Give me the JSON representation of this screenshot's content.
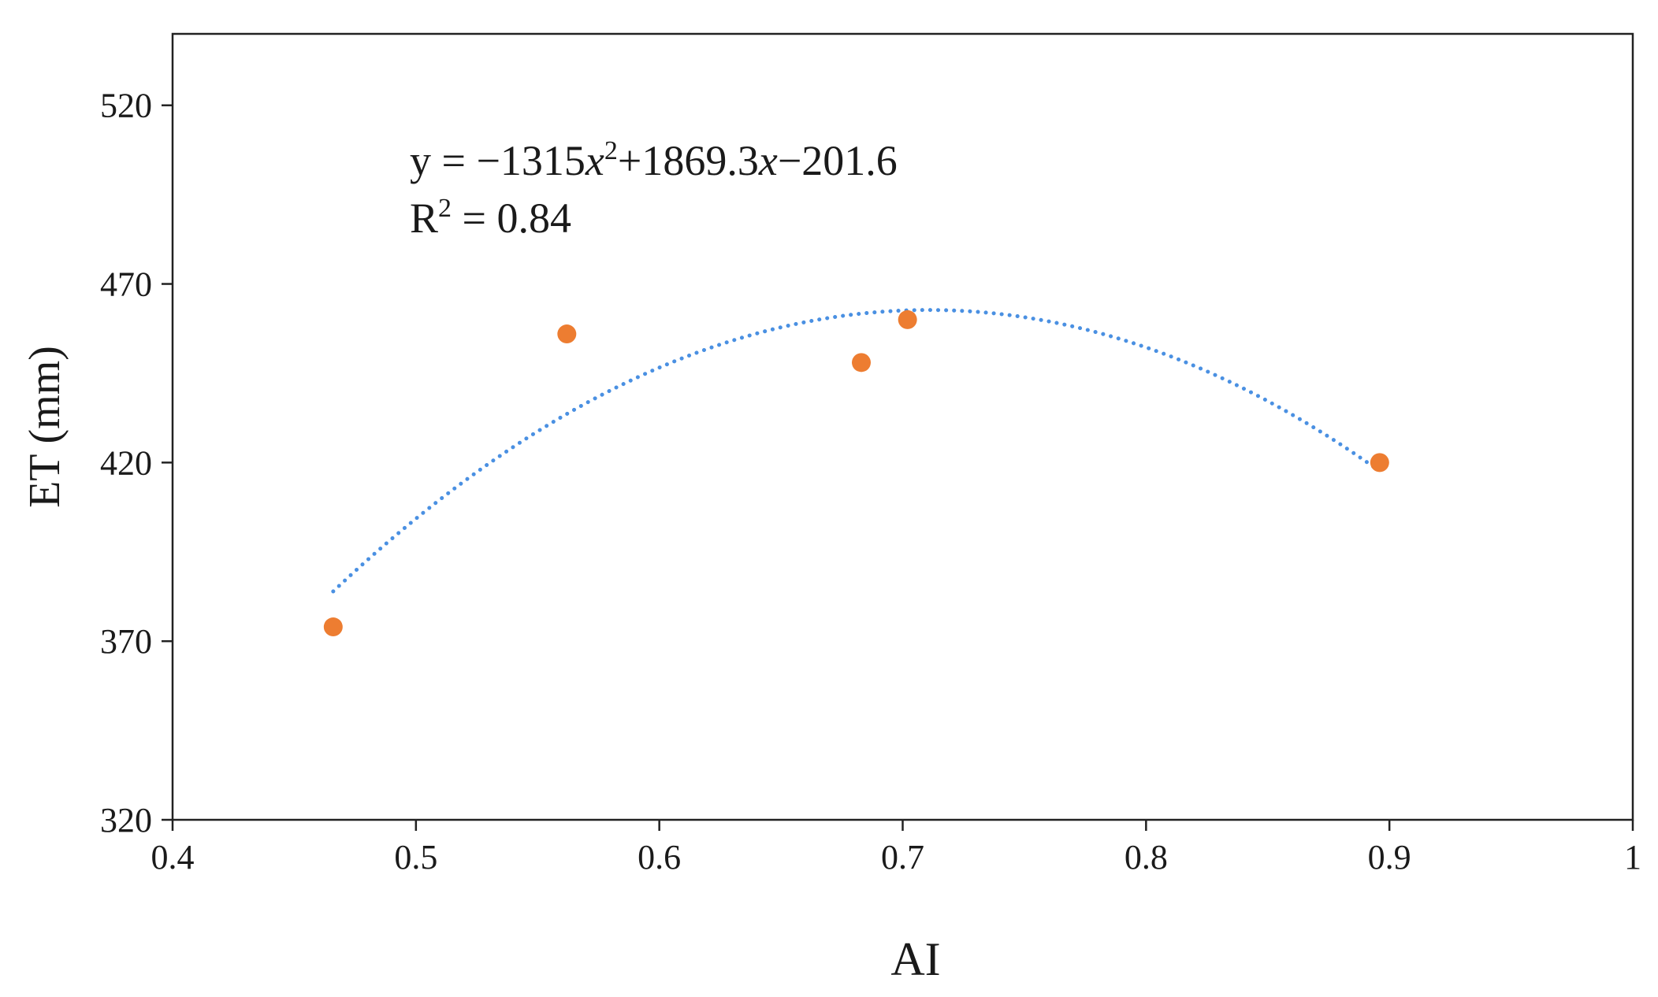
{
  "chart_data": {
    "type": "scatter",
    "xlabel": "AI",
    "ylabel": "ET (mm)",
    "xlim": [
      0.4,
      1.0
    ],
    "ylim": [
      320,
      540
    ],
    "x_ticks": [
      0.4,
      0.5,
      0.6,
      0.7,
      0.8,
      0.9,
      1.0
    ],
    "x_tick_labels": [
      "0.4",
      "0.5",
      "0.6",
      "0.7",
      "0.8",
      "0.9",
      "1"
    ],
    "y_ticks": [
      320,
      370,
      420,
      470,
      520
    ],
    "y_tick_labels": [
      "320",
      "370",
      "420",
      "470",
      "520"
    ],
    "grid": false,
    "points": [
      {
        "x": 0.466,
        "y": 374
      },
      {
        "x": 0.562,
        "y": 456
      },
      {
        "x": 0.683,
        "y": 448
      },
      {
        "x": 0.702,
        "y": 460
      },
      {
        "x": 0.896,
        "y": 420
      }
    ],
    "point_color": "#ED7D31",
    "trendline": {
      "type": "polynomial",
      "order": 2,
      "coefficients": [
        -1315,
        1869.3,
        -201.6
      ],
      "x_range": [
        0.466,
        0.896
      ],
      "color": "#4A90E2",
      "style": "dotted",
      "equation_label": {
        "parts": [
          {
            "text": "y = −1315",
            "italic": false,
            "sup": false
          },
          {
            "text": "x",
            "italic": true,
            "sup": false
          },
          {
            "text": "2",
            "italic": false,
            "sup": true
          },
          {
            "text": "+1869.3",
            "italic": false,
            "sup": false
          },
          {
            "text": "x",
            "italic": true,
            "sup": false
          },
          {
            "text": "−201.6",
            "italic": false,
            "sup": false
          }
        ]
      },
      "r2_label": {
        "parts": [
          {
            "text": "R",
            "italic": false,
            "sup": false
          },
          {
            "text": "2",
            "italic": false,
            "sup": true
          },
          {
            "text": " = 0.84",
            "italic": false,
            "sup": false
          }
        ]
      }
    }
  }
}
